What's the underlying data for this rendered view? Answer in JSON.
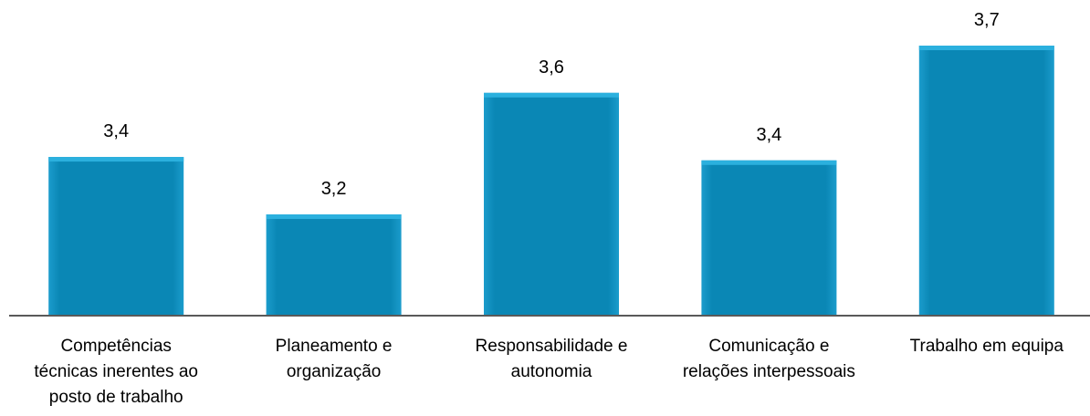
{
  "chart_data": {
    "type": "bar",
    "categories": [
      "Competências técnicas inerentes ao posto de trabalho",
      "Planeamento e organização",
      "Responsabilidade e autonomia",
      "Comunicação e relações interpessoais",
      "Trabalho em equipa"
    ],
    "values": [
      3.37,
      3.2,
      3.56,
      3.36,
      3.7
    ],
    "value_labels": [
      "3,4",
      "3,2",
      "3,6",
      "3,4",
      "3,7"
    ],
    "color": "#0a87b5",
    "ylim": [
      2.9,
      3.8
    ]
  }
}
